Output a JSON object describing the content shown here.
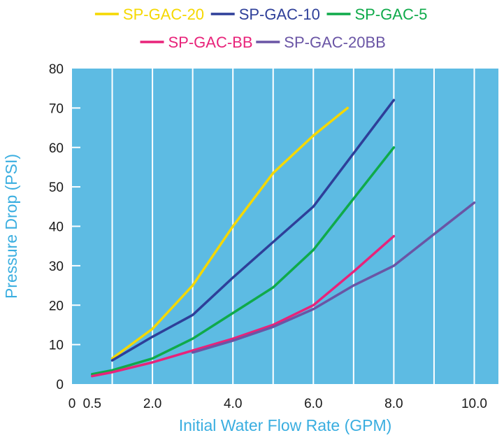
{
  "chart_data": {
    "type": "line",
    "title": "",
    "xlabel": "Initial Water Flow Rate (GPM)",
    "ylabel": "Pressure Drop (PSI)",
    "xlim": [
      0,
      10.6
    ],
    "ylim": [
      0,
      80
    ],
    "x_ticks": [
      {
        "value": 0,
        "label": "0"
      },
      {
        "value": 0.5,
        "label": "0.5"
      },
      {
        "value": 2,
        "label": "2.0"
      },
      {
        "value": 4,
        "label": "4.0"
      },
      {
        "value": 6,
        "label": "6.0"
      },
      {
        "value": 8,
        "label": "8.0"
      },
      {
        "value": 10,
        "label": "10.0"
      }
    ],
    "y_ticks": [
      0,
      10,
      20,
      30,
      40,
      50,
      60,
      70,
      80
    ],
    "grid": "vertical",
    "background_color": "#5dbbe3",
    "legend_position": "top",
    "series": [
      {
        "name": "SP-GAC-20",
        "color": "#f5d800",
        "points": [
          [
            1.0,
            6.5
          ],
          [
            2.0,
            14
          ],
          [
            3.0,
            25
          ],
          [
            4.0,
            40
          ],
          [
            5.0,
            53.5
          ],
          [
            6.0,
            63
          ],
          [
            6.85,
            70
          ]
        ]
      },
      {
        "name": "SP-GAC-10",
        "color": "#2e3f99",
        "points": [
          [
            1.0,
            6
          ],
          [
            2.0,
            12
          ],
          [
            3.0,
            17.5
          ],
          [
            4.0,
            27
          ],
          [
            5.0,
            36
          ],
          [
            6.0,
            45
          ],
          [
            7.0,
            58.5
          ],
          [
            8.0,
            72
          ]
        ]
      },
      {
        "name": "SP-GAC-5",
        "color": "#0faa4a",
        "points": [
          [
            0.5,
            2.5
          ],
          [
            1.0,
            3.5
          ],
          [
            2.0,
            6.5
          ],
          [
            3.0,
            11.5
          ],
          [
            4.0,
            18
          ],
          [
            5.0,
            24.5
          ],
          [
            6.0,
            34
          ],
          [
            7.0,
            47
          ],
          [
            8.0,
            60
          ]
        ]
      },
      {
        "name": "SP-GAC-BB",
        "color": "#e8237a",
        "points": [
          [
            0.5,
            2
          ],
          [
            1.0,
            3
          ],
          [
            2.0,
            5.5
          ],
          [
            3.0,
            8.5
          ],
          [
            4.0,
            11.5
          ],
          [
            5.0,
            15
          ],
          [
            6.0,
            20
          ],
          [
            7.0,
            28.5
          ],
          [
            8.0,
            37.5
          ]
        ]
      },
      {
        "name": "SP-GAC-20BB",
        "color": "#6a55a5",
        "points": [
          [
            3.0,
            8
          ],
          [
            4.0,
            11
          ],
          [
            5.0,
            14.5
          ],
          [
            6.0,
            19
          ],
          [
            7.0,
            25
          ],
          [
            8.0,
            30
          ],
          [
            9.0,
            38
          ],
          [
            10.0,
            46
          ]
        ]
      }
    ]
  }
}
